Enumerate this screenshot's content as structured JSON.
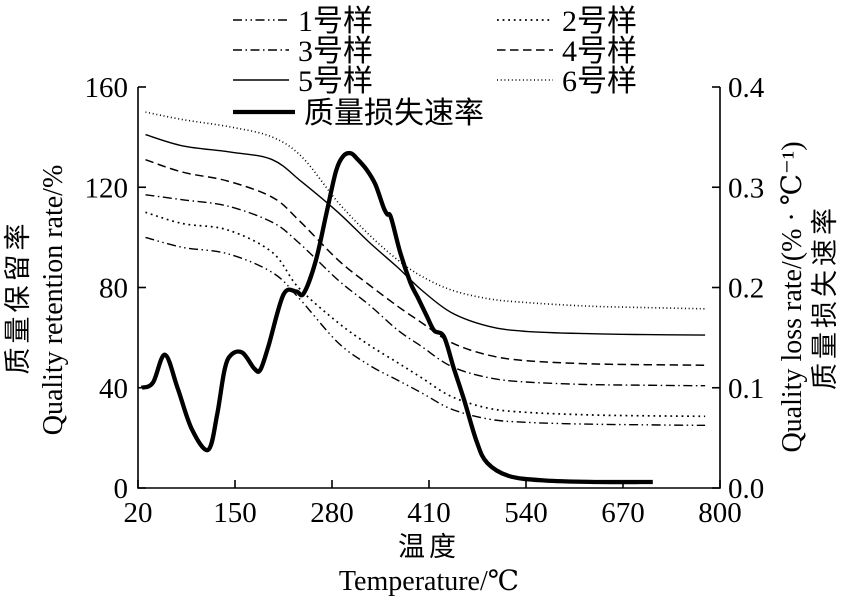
{
  "chart_data": {
    "type": "line",
    "background": "#ffffff",
    "stroke_color": "#000000",
    "x_axis": {
      "label_cn": "温度",
      "label_en": "Temperature/℃",
      "range": [
        20,
        800
      ],
      "ticks": [
        20,
        150,
        280,
        410,
        540,
        670,
        800
      ]
    },
    "y_left": {
      "label_cn": "质量保留率",
      "label_en": "Quality retention rate/%",
      "range": [
        0,
        160
      ],
      "ticks": [
        0,
        40,
        80,
        120,
        160
      ]
    },
    "y_right": {
      "label_cn": "质量损失速率",
      "label_en": "Quality loss rate/(% · ℃⁻¹)",
      "range": [
        0,
        0.4
      ],
      "ticks": [
        "0.0",
        "0.1",
        "0.2",
        "0.3",
        "0.4"
      ]
    },
    "legend": [
      {
        "label": "1号样",
        "style": "dash-dot-dot"
      },
      {
        "label": "2号样",
        "style": "dotted"
      },
      {
        "label": "3号样",
        "style": "dash-dot"
      },
      {
        "label": "4号样",
        "style": "dashed"
      },
      {
        "label": "5号样",
        "style": "solid"
      },
      {
        "label": "6号样",
        "style": "fine-dot"
      },
      {
        "label": "质量损失速率",
        "style": "thick-solid"
      }
    ],
    "series": [
      {
        "name": "1号样",
        "axis": "left",
        "style": "dash-dot-dot",
        "points": [
          [
            30,
            100
          ],
          [
            80,
            96
          ],
          [
            140,
            93.5
          ],
          [
            200,
            86
          ],
          [
            235,
            76
          ],
          [
            288,
            58
          ],
          [
            330,
            49
          ],
          [
            368,
            43
          ],
          [
            400,
            38
          ],
          [
            440,
            31.5
          ],
          [
            490,
            27.5
          ],
          [
            540,
            26.2
          ],
          [
            620,
            25.5
          ],
          [
            700,
            25.2
          ],
          [
            780,
            25
          ]
        ]
      },
      {
        "name": "2号样",
        "axis": "left",
        "style": "dotted",
        "points": [
          [
            30,
            110
          ],
          [
            80,
            105.5
          ],
          [
            140,
            103
          ],
          [
            200,
            94
          ],
          [
            235,
            80
          ],
          [
            288,
            66
          ],
          [
            330,
            57
          ],
          [
            368,
            50
          ],
          [
            400,
            44
          ],
          [
            440,
            36.5
          ],
          [
            490,
            31.8
          ],
          [
            540,
            30.2
          ],
          [
            620,
            29.2
          ],
          [
            700,
            28.8
          ],
          [
            780,
            28.6
          ]
        ]
      },
      {
        "name": "3号样",
        "axis": "left",
        "style": "dash-dot",
        "points": [
          [
            30,
            117
          ],
          [
            80,
            115
          ],
          [
            140,
            112.5
          ],
          [
            200,
            106
          ],
          [
            235,
            98
          ],
          [
            288,
            83
          ],
          [
            330,
            73
          ],
          [
            368,
            63
          ],
          [
            400,
            56.5
          ],
          [
            440,
            48.5
          ],
          [
            490,
            44
          ],
          [
            540,
            42.3
          ],
          [
            620,
            41.3
          ],
          [
            700,
            41
          ],
          [
            780,
            40.8
          ]
        ]
      },
      {
        "name": "4号样",
        "axis": "left",
        "style": "dashed",
        "points": [
          [
            30,
            131
          ],
          [
            80,
            126
          ],
          [
            140,
            122.5
          ],
          [
            200,
            116
          ],
          [
            235,
            107
          ],
          [
            288,
            91
          ],
          [
            330,
            81
          ],
          [
            368,
            72.5
          ],
          [
            400,
            66
          ],
          [
            440,
            58
          ],
          [
            490,
            53
          ],
          [
            540,
            50.8
          ],
          [
            620,
            49.6
          ],
          [
            700,
            49.2
          ],
          [
            780,
            49
          ]
        ]
      },
      {
        "name": "5号样",
        "axis": "left",
        "style": "solid",
        "points": [
          [
            30,
            141
          ],
          [
            80,
            136.5
          ],
          [
            145,
            134
          ],
          [
            200,
            131
          ],
          [
            240,
            122
          ],
          [
            288,
            110
          ],
          [
            330,
            98
          ],
          [
            368,
            88
          ],
          [
            400,
            79
          ],
          [
            440,
            70
          ],
          [
            490,
            64.5
          ],
          [
            540,
            62.5
          ],
          [
            620,
            61.6
          ],
          [
            700,
            61.2
          ],
          [
            780,
            61
          ]
        ]
      },
      {
        "name": "6号样",
        "axis": "left",
        "style": "fine-dot",
        "points": [
          [
            30,
            150
          ],
          [
            80,
            147
          ],
          [
            145,
            144
          ],
          [
            200,
            140
          ],
          [
            240,
            132
          ],
          [
            288,
            114
          ],
          [
            330,
            101
          ],
          [
            368,
            91
          ],
          [
            400,
            84.5
          ],
          [
            440,
            79
          ],
          [
            490,
            75.5
          ],
          [
            540,
            74
          ],
          [
            620,
            72.6
          ],
          [
            700,
            72
          ],
          [
            780,
            71.5
          ]
        ]
      },
      {
        "name": "质量损失速率",
        "axis": "right",
        "style": "thick-solid",
        "points": [
          [
            25,
            0.1
          ],
          [
            40,
            0.105
          ],
          [
            56,
            0.133
          ],
          [
            73,
            0.1
          ],
          [
            92,
            0.059
          ],
          [
            114,
            0.038
          ],
          [
            126,
            0.073
          ],
          [
            136,
            0.118
          ],
          [
            145,
            0.133
          ],
          [
            160,
            0.135
          ],
          [
            176,
            0.119
          ],
          [
            184,
            0.118
          ],
          [
            195,
            0.142
          ],
          [
            215,
            0.193
          ],
          [
            232,
            0.196
          ],
          [
            242,
            0.194
          ],
          [
            258,
            0.226
          ],
          [
            272,
            0.272
          ],
          [
            285,
            0.315
          ],
          [
            295,
            0.331
          ],
          [
            305,
            0.334
          ],
          [
            313,
            0.329
          ],
          [
            326,
            0.318
          ],
          [
            338,
            0.303
          ],
          [
            349,
            0.28
          ],
          [
            354,
            0.273
          ],
          [
            359,
            0.27
          ],
          [
            371,
            0.236
          ],
          [
            385,
            0.205
          ],
          [
            395,
            0.19
          ],
          [
            408,
            0.17
          ],
          [
            417,
            0.157
          ],
          [
            430,
            0.151
          ],
          [
            443,
            0.12
          ],
          [
            457,
            0.088
          ],
          [
            474,
            0.046
          ],
          [
            488,
            0.025
          ],
          [
            517,
            0.012
          ],
          [
            565,
            0.0075
          ],
          [
            635,
            0.006
          ],
          [
            710,
            0.006
          ]
        ]
      }
    ]
  }
}
